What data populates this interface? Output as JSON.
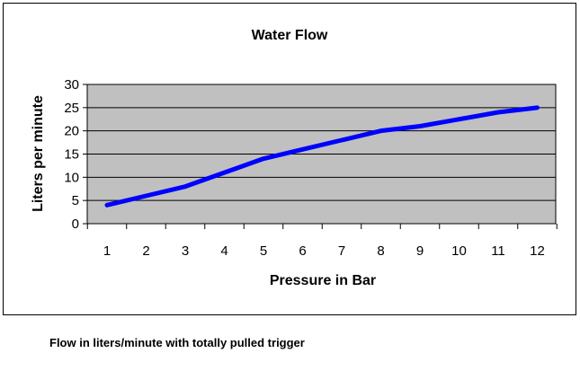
{
  "chart_data": {
    "type": "line",
    "title": "Water Flow",
    "xlabel": "Pressure in Bar",
    "ylabel": "Liters per minute",
    "x": [
      1,
      2,
      3,
      4,
      5,
      6,
      7,
      8,
      9,
      10,
      11,
      12
    ],
    "series": [
      {
        "values": [
          4,
          6,
          8,
          11,
          14,
          16,
          18,
          20,
          21,
          22.5,
          24,
          25
        ]
      }
    ],
    "ylim": [
      0,
      30
    ],
    "yticks": [
      0,
      5,
      10,
      15,
      20,
      25,
      30
    ],
    "xticks": [
      "1",
      "2",
      "3",
      "4",
      "5",
      "6",
      "7",
      "8",
      "9",
      "10",
      "11",
      "12"
    ],
    "grid": "horizontal",
    "legend": "none",
    "colors": {
      "line": "#0000ff",
      "plot_background": "#c0c0c0",
      "grid": "#000000"
    }
  },
  "caption": "Flow in liters/minute with totally pulled trigger"
}
